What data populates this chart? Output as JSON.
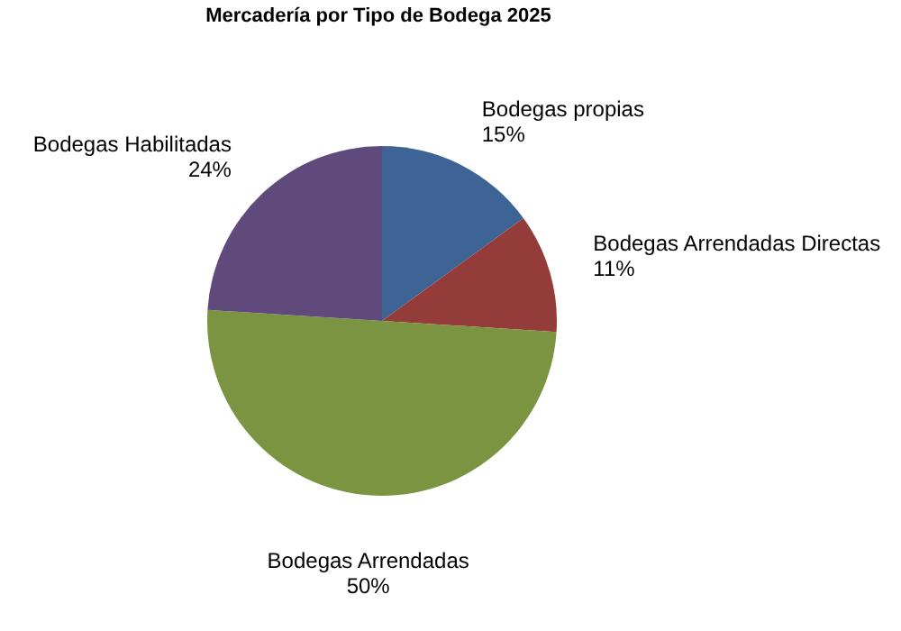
{
  "chart_data": {
    "type": "pie",
    "title": "Mercadería por Tipo de Bodega 2025",
    "categories": [
      "Bodegas propias",
      "Bodegas Arrendadas Directas",
      "Bodegas Arrendadas",
      "Bodegas Habilitadas"
    ],
    "values": [
      15,
      11,
      50,
      24
    ],
    "value_labels": [
      "15%",
      "11%",
      "50%",
      "24%"
    ],
    "colors": [
      "#3e6496",
      "#943c3a",
      "#7a9441",
      "#604a7b"
    ]
  }
}
